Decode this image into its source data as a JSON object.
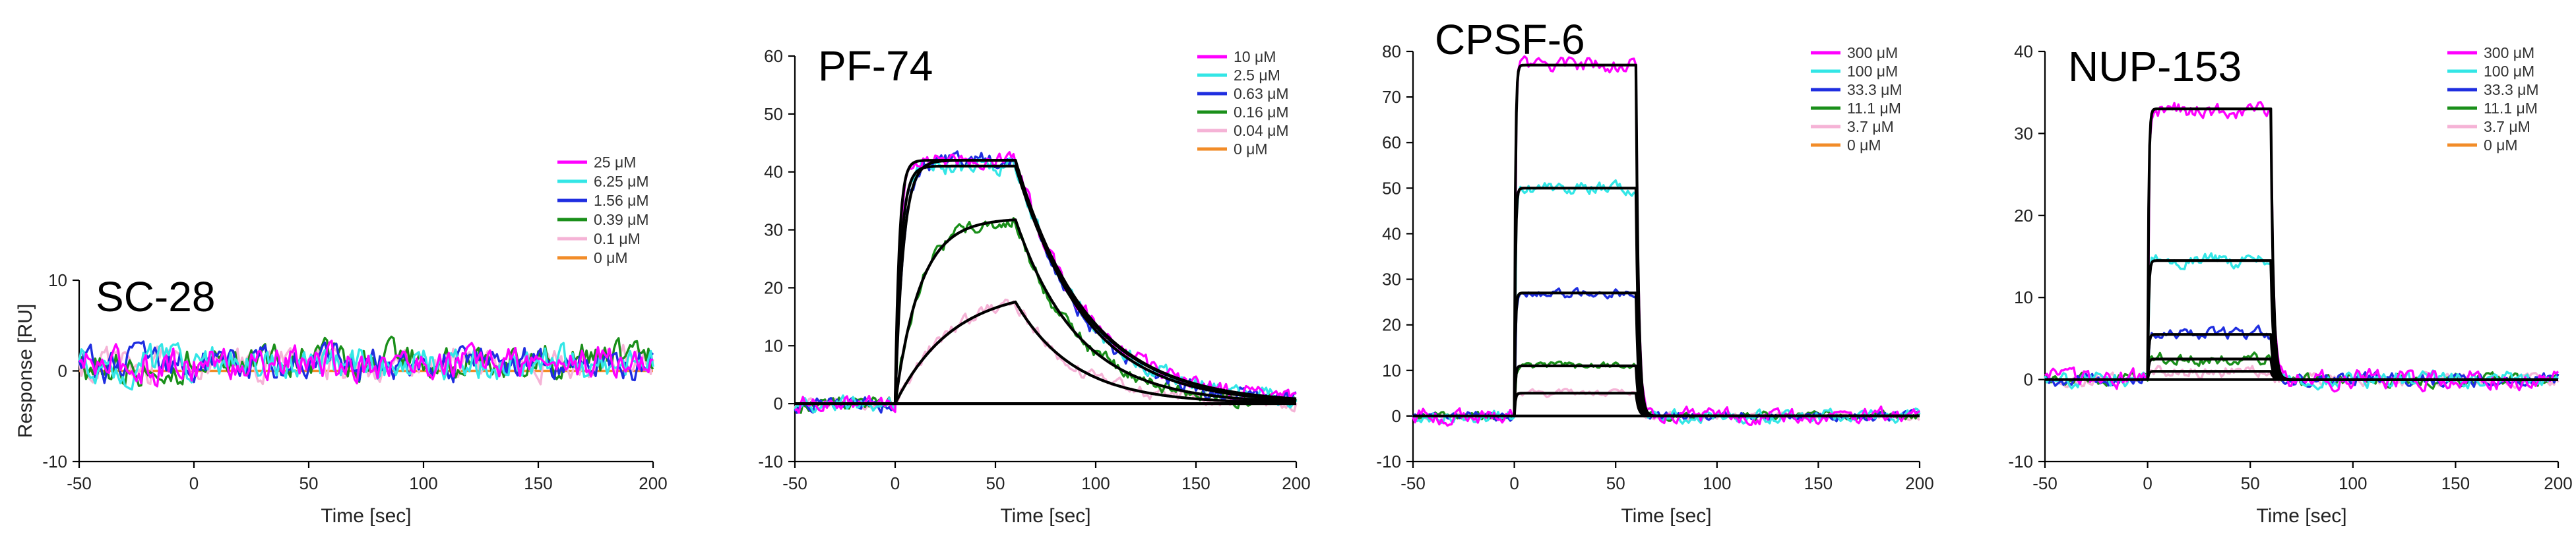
{
  "chart_data": [
    {
      "type": "line",
      "title": "SC-28",
      "xlabel": "Time [sec]",
      "ylabel": "Response [RU]",
      "xlim": [
        -50,
        200
      ],
      "ylim": [
        -10,
        10
      ],
      "xticks": [
        -50,
        0,
        50,
        100,
        150,
        200
      ],
      "yticks": [
        -10,
        0,
        10
      ],
      "assoc_end": 60,
      "legend_position": "top-right",
      "noise": 1.6,
      "series": [
        {
          "name": "25 μM",
          "color": "#ff00ff",
          "plateau": 1.5,
          "ka": 0.5,
          "kd": 0.3,
          "fit": false
        },
        {
          "name": "6.25 μM",
          "color": "#33e6e6",
          "plateau": 1.2,
          "ka": 0.5,
          "kd": 0.3,
          "fit": false
        },
        {
          "name": "1.56 μM",
          "color": "#1f2ee0",
          "plateau": 1.3,
          "ka": 0.5,
          "kd": 0.3,
          "fit": false
        },
        {
          "name": "0.39 μM",
          "color": "#1a8f1a",
          "plateau": 2.0,
          "ka": 0.5,
          "kd": 0.3,
          "fit": false
        },
        {
          "name": "0.1 μM",
          "color": "#f5b3d6",
          "plateau": 1.4,
          "ka": 0.5,
          "kd": 0.3,
          "fit": false
        },
        {
          "name": "0 μM",
          "color": "#f28c28",
          "plateau": 0,
          "ka": 0.5,
          "kd": 0.3,
          "fit": false,
          "flat": true
        }
      ]
    },
    {
      "type": "line",
      "title": "PF-74",
      "xlabel": "Time [sec]",
      "ylabel": "",
      "xlim": [
        -50,
        200
      ],
      "ylim": [
        -10,
        60
      ],
      "xticks": [
        -50,
        0,
        50,
        100,
        150,
        200
      ],
      "yticks": [
        -10,
        0,
        10,
        20,
        30,
        40,
        50,
        60
      ],
      "assoc_end": 60,
      "legend_position": "top-right",
      "noise": 0.9,
      "series": [
        {
          "name": "10 μM",
          "color": "#ff00ff",
          "plateau": 42,
          "ka": 0.5,
          "kd": 0.028,
          "fit": true
        },
        {
          "name": "2.5 μM",
          "color": "#33e6e6",
          "plateau": 41,
          "ka": 0.35,
          "kd": 0.028,
          "fit": true
        },
        {
          "name": "0.63 μM",
          "color": "#1f2ee0",
          "plateau": 42,
          "ka": 0.25,
          "kd": 0.03,
          "fit": true
        },
        {
          "name": "0.16 μM",
          "color": "#1a8f1a",
          "plateau": 32,
          "ka": 0.08,
          "kd": 0.032,
          "fit": true
        },
        {
          "name": "0.04 μM",
          "color": "#f5b3d6",
          "plateau": 20,
          "ka": 0.035,
          "kd": 0.034,
          "fit": true
        },
        {
          "name": "0 μM",
          "color": "#f28c28",
          "plateau": 0,
          "ka": 0.5,
          "kd": 0.03,
          "fit": false,
          "flat": true
        }
      ]
    },
    {
      "type": "line",
      "title": "CPSF-6",
      "xlabel": "Time [sec]",
      "ylabel": "",
      "xlim": [
        -50,
        200
      ],
      "ylim": [
        -10,
        80
      ],
      "xticks": [
        -50,
        0,
        50,
        100,
        150,
        200
      ],
      "yticks": [
        -10,
        0,
        10,
        20,
        30,
        40,
        50,
        60,
        70,
        80
      ],
      "assoc_end": 60,
      "legend_position": "top-right",
      "noise": 0.8,
      "series": [
        {
          "name": "300 μM",
          "color": "#ff00ff",
          "plateau": 77,
          "ka": 2.0,
          "kd": 0.8,
          "fit": true
        },
        {
          "name": "100 μM",
          "color": "#33e6e6",
          "plateau": 50,
          "ka": 2.0,
          "kd": 0.8,
          "fit": true
        },
        {
          "name": "33.3 μM",
          "color": "#1f2ee0",
          "plateau": 27,
          "ka": 2.0,
          "kd": 0.8,
          "fit": true
        },
        {
          "name": "11.1 μM",
          "color": "#1a8f1a",
          "plateau": 11,
          "ka": 2.0,
          "kd": 0.8,
          "fit": true
        },
        {
          "name": "3.7 μM",
          "color": "#f5b3d6",
          "plateau": 5,
          "ka": 2.0,
          "kd": 0.8,
          "fit": true
        },
        {
          "name": "0 μM",
          "color": "#f28c28",
          "plateau": 0,
          "ka": 2.0,
          "kd": 0.8,
          "fit": false,
          "flat": true
        }
      ]
    },
    {
      "type": "line",
      "title": "NUP-153",
      "xlabel": "Time [sec]",
      "ylabel": "",
      "xlim": [
        -50,
        200
      ],
      "ylim": [
        -10,
        40
      ],
      "xticks": [
        -50,
        0,
        50,
        100,
        150,
        200
      ],
      "yticks": [
        -10,
        0,
        10,
        20,
        30,
        40
      ],
      "assoc_end": 60,
      "legend_position": "top-right",
      "noise": 0.8,
      "series": [
        {
          "name": "300 μM",
          "color": "#ff00ff",
          "plateau": 33,
          "ka": 2.0,
          "kd": 0.8,
          "fit": true
        },
        {
          "name": "100 μM",
          "color": "#33e6e6",
          "plateau": 14.5,
          "ka": 2.0,
          "kd": 0.8,
          "fit": true
        },
        {
          "name": "33.3 μM",
          "color": "#1f2ee0",
          "plateau": 5.5,
          "ka": 2.0,
          "kd": 0.8,
          "fit": true
        },
        {
          "name": "11.1 μM",
          "color": "#1a8f1a",
          "plateau": 2.5,
          "ka": 2.0,
          "kd": 0.8,
          "fit": true
        },
        {
          "name": "3.7 μM",
          "color": "#f5b3d6",
          "plateau": 1,
          "ka": 2.0,
          "kd": 0.8,
          "fit": true
        },
        {
          "name": "0 μM",
          "color": "#f28c28",
          "plateau": 0,
          "ka": 2.0,
          "kd": 0.8,
          "fit": false,
          "flat": true
        }
      ]
    }
  ]
}
